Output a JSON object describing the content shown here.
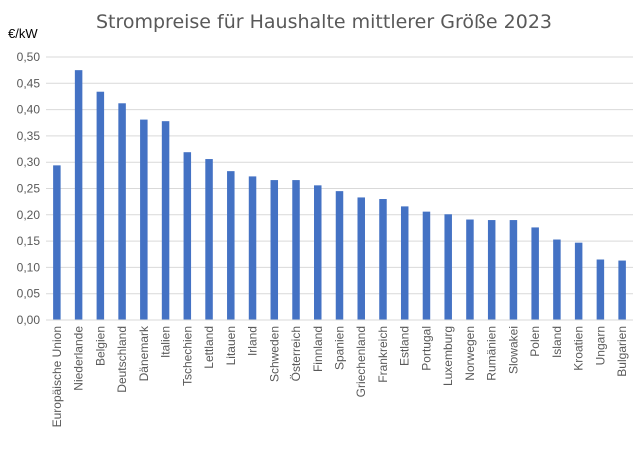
{
  "chart_data": {
    "type": "bar",
    "title": "Strompreise für Haushalte mittlerer Größe 2023",
    "ylabel": "€/kW",
    "xlabel": "",
    "ylim": [
      0,
      0.5
    ],
    "yticks": [
      "0,00",
      "0,05",
      "0,10",
      "0,15",
      "0,20",
      "0,25",
      "0,30",
      "0,35",
      "0,40",
      "0,45",
      "0,50"
    ],
    "grid": true,
    "bar_color": "#4472C4",
    "grid_color": "#D9D9D9",
    "categories": [
      "Europäische Union",
      "Niederlande",
      "Belgien",
      "Deutschland",
      "Dänemark",
      "Italien",
      "Tschechien",
      "Lettland",
      "Litauen",
      "Irland",
      "Schweden",
      "Österreich",
      "Finnland",
      "Spanien",
      "Griechenland",
      "Frankreich",
      "Estland",
      "Portugal",
      "Luxemburg",
      "Norwegen",
      "Rumänien",
      "Slowakei",
      "Polen",
      "Island",
      "Kroatien",
      "Ungarn",
      "Bulgarien"
    ],
    "values": [
      0.294,
      0.475,
      0.434,
      0.412,
      0.381,
      0.378,
      0.319,
      0.306,
      0.283,
      0.273,
      0.266,
      0.266,
      0.256,
      0.245,
      0.233,
      0.23,
      0.216,
      0.206,
      0.201,
      0.191,
      0.19,
      0.19,
      0.176,
      0.153,
      0.147,
      0.115,
      0.113
    ]
  }
}
